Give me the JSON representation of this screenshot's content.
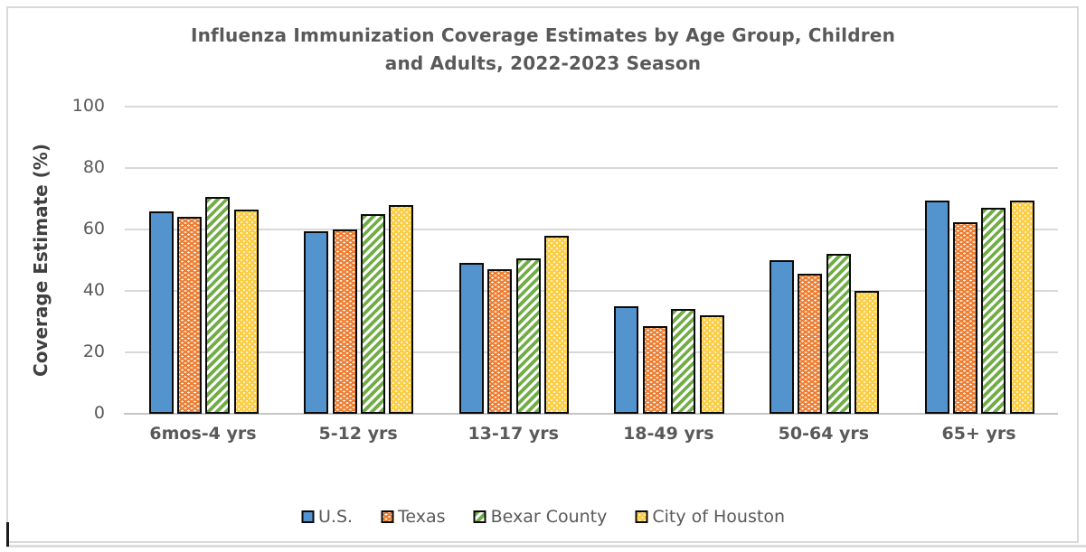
{
  "ui": {
    "title_lines": "Influenza Immunization Coverage Estimates by Age Group, Children\nand Adults, 2022-2023 Season"
  },
  "chart_data": {
    "type": "bar",
    "title": "Influenza Immunization Coverage Estimates by Age Group, Children and Adults, 2022-2023 Season",
    "ylabel": "Coverage Estimate (%)",
    "xlabel": "",
    "ylim": [
      0,
      100
    ],
    "yticks": [
      0,
      20,
      40,
      60,
      80,
      100
    ],
    "grid": true,
    "legend_position": "bottom",
    "categories": [
      "6mos-4 yrs",
      "5-12 yrs",
      "13-17 yrs",
      "18-49 yrs",
      "50-64 yrs",
      "65+ yrs"
    ],
    "series": [
      {
        "name": "U.S.",
        "slug": "us",
        "color": "#5494CE",
        "pattern": "solid",
        "values": [
          66,
          59.5,
          49,
          35,
          50,
          69.5
        ]
      },
      {
        "name": "Texas",
        "slug": "texas",
        "color": "#ED7D31",
        "pattern": "white-dots",
        "values": [
          64,
          60,
          47,
          28.5,
          45.5,
          62.5
        ]
      },
      {
        "name": "Bexar County",
        "slug": "bexar",
        "color": "#71AD47",
        "pattern": "diagonal-stripes",
        "values": [
          70.5,
          65,
          50.5,
          34,
          52,
          67
        ]
      },
      {
        "name": "City of Houston",
        "slug": "houston",
        "color": "#FBCE45",
        "pattern": "white-dot-lattice",
        "values": [
          66.5,
          68,
          58,
          32,
          40,
          69.5
        ]
      }
    ],
    "colors": {
      "grid": "#D9D9D9",
      "axis": "#C6C6C6",
      "bar_outline": "#0a0a0a",
      "text": "#595959",
      "frame_border": "#D9D9D9"
    }
  }
}
